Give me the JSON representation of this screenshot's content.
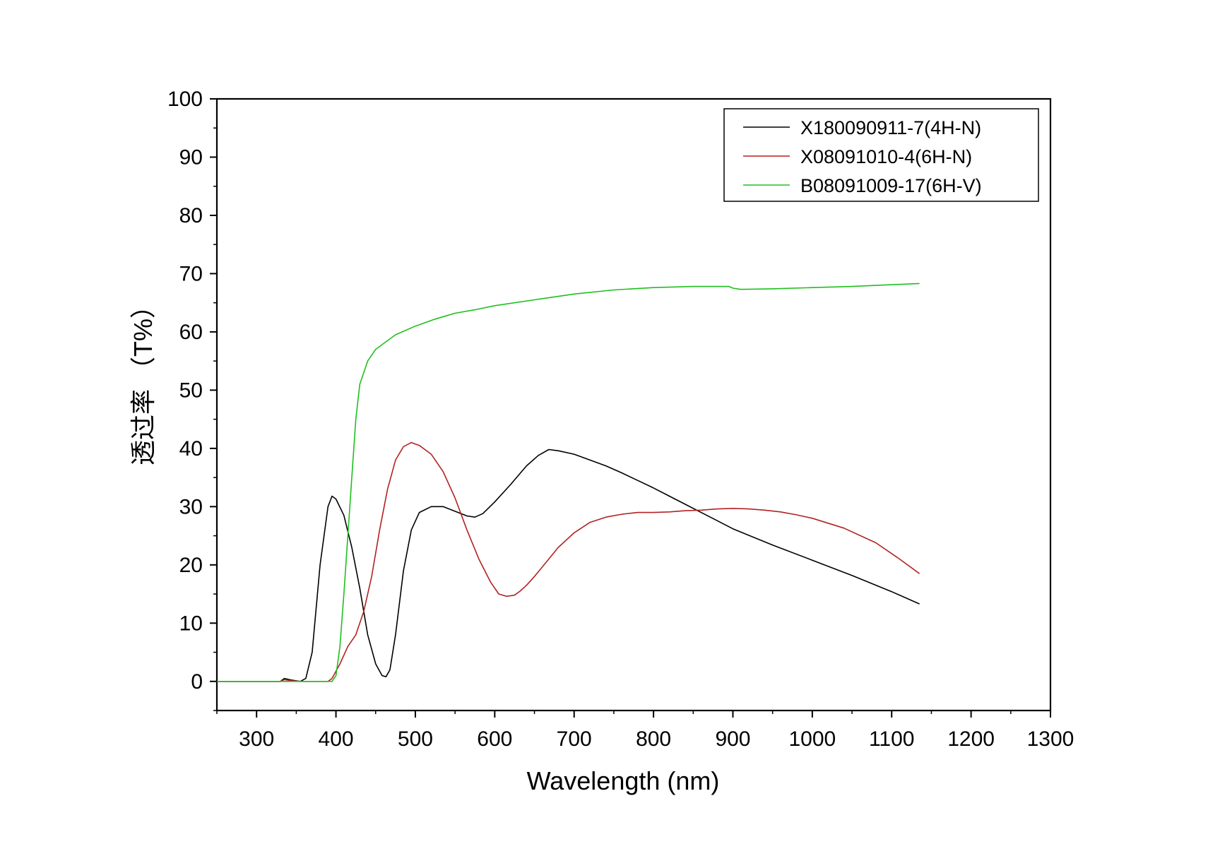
{
  "chart_data": {
    "type": "line",
    "title": "",
    "xlabel": "Wavelength (nm)",
    "ylabel": "透过率 （T%）",
    "xlim": [
      250,
      1300
    ],
    "ylim": [
      -5,
      100
    ],
    "xticks": [
      300,
      400,
      500,
      600,
      700,
      800,
      900,
      1000,
      1100,
      1200,
      1300
    ],
    "yticks": [
      0,
      10,
      20,
      30,
      40,
      50,
      60,
      70,
      80,
      90,
      100
    ],
    "grid": false,
    "legend_position": "top-right",
    "series": [
      {
        "name": "X180090911-7(4H-N)",
        "color": "#000000",
        "x": [
          250,
          330,
          335,
          345,
          355,
          362,
          370,
          380,
          390,
          395,
          400,
          410,
          420,
          430,
          440,
          450,
          458,
          463,
          468,
          475,
          485,
          495,
          505,
          520,
          535,
          550,
          565,
          575,
          585,
          600,
          620,
          640,
          655,
          668,
          680,
          700,
          720,
          740,
          760,
          780,
          800,
          820,
          840,
          860,
          880,
          900,
          950,
          1000,
          1050,
          1100,
          1135
        ],
        "y": [
          0,
          0,
          0.5,
          0.2,
          0,
          0.5,
          5,
          20,
          30,
          31.8,
          31.3,
          28.5,
          23,
          16,
          8,
          3,
          1,
          0.8,
          2,
          8,
          19,
          26,
          29,
          30,
          30,
          29.2,
          28.4,
          28.2,
          28.8,
          30.8,
          33.8,
          37,
          38.8,
          39.8,
          39.6,
          39,
          38,
          37,
          35.8,
          34.5,
          33.2,
          31.8,
          30.4,
          29,
          27.6,
          26.2,
          23.4,
          20.8,
          18.2,
          15.4,
          13.3
        ]
      },
      {
        "name": "X08091010-4(6H-N)",
        "color": "#b22222",
        "x": [
          250,
          330,
          335,
          345,
          355,
          390,
          395,
          405,
          415,
          425,
          435,
          445,
          455,
          465,
          475,
          485,
          495,
          505,
          520,
          535,
          550,
          565,
          580,
          595,
          605,
          615,
          625,
          632,
          640,
          650,
          665,
          680,
          700,
          720,
          740,
          760,
          780,
          800,
          820,
          840,
          860,
          880,
          900,
          920,
          940,
          960,
          980,
          1000,
          1040,
          1080,
          1110,
          1135
        ],
        "y": [
          0,
          0,
          0.3,
          0.1,
          0,
          0,
          0.5,
          3,
          6,
          8,
          12,
          18,
          26,
          33,
          38,
          40.3,
          41,
          40.5,
          39,
          36,
          31.5,
          26,
          21,
          17,
          15,
          14.6,
          14.8,
          15.5,
          16.5,
          18,
          20.5,
          23,
          25.5,
          27.3,
          28.2,
          28.7,
          29,
          29,
          29.1,
          29.3,
          29.4,
          29.6,
          29.7,
          29.6,
          29.4,
          29.1,
          28.6,
          28,
          26.3,
          23.8,
          21,
          18.5
        ]
      },
      {
        "name": "B08091009-17(6H-V)",
        "color": "#1fbf1f",
        "x": [
          250,
          330,
          395,
          400,
          405,
          410,
          415,
          420,
          425,
          430,
          440,
          450,
          460,
          475,
          500,
          525,
          550,
          575,
          600,
          650,
          700,
          750,
          800,
          850,
          880,
          895,
          900,
          910,
          950,
          1000,
          1050,
          1100,
          1135
        ],
        "y": [
          0,
          0,
          0,
          1,
          6,
          15,
          25,
          35,
          45,
          51,
          55,
          57,
          58,
          59.5,
          61,
          62.2,
          63.2,
          63.8,
          64.5,
          65.5,
          66.5,
          67.2,
          67.6,
          67.8,
          67.8,
          67.8,
          67.5,
          67.3,
          67.4,
          67.6,
          67.8,
          68.1,
          68.3
        ]
      }
    ]
  }
}
